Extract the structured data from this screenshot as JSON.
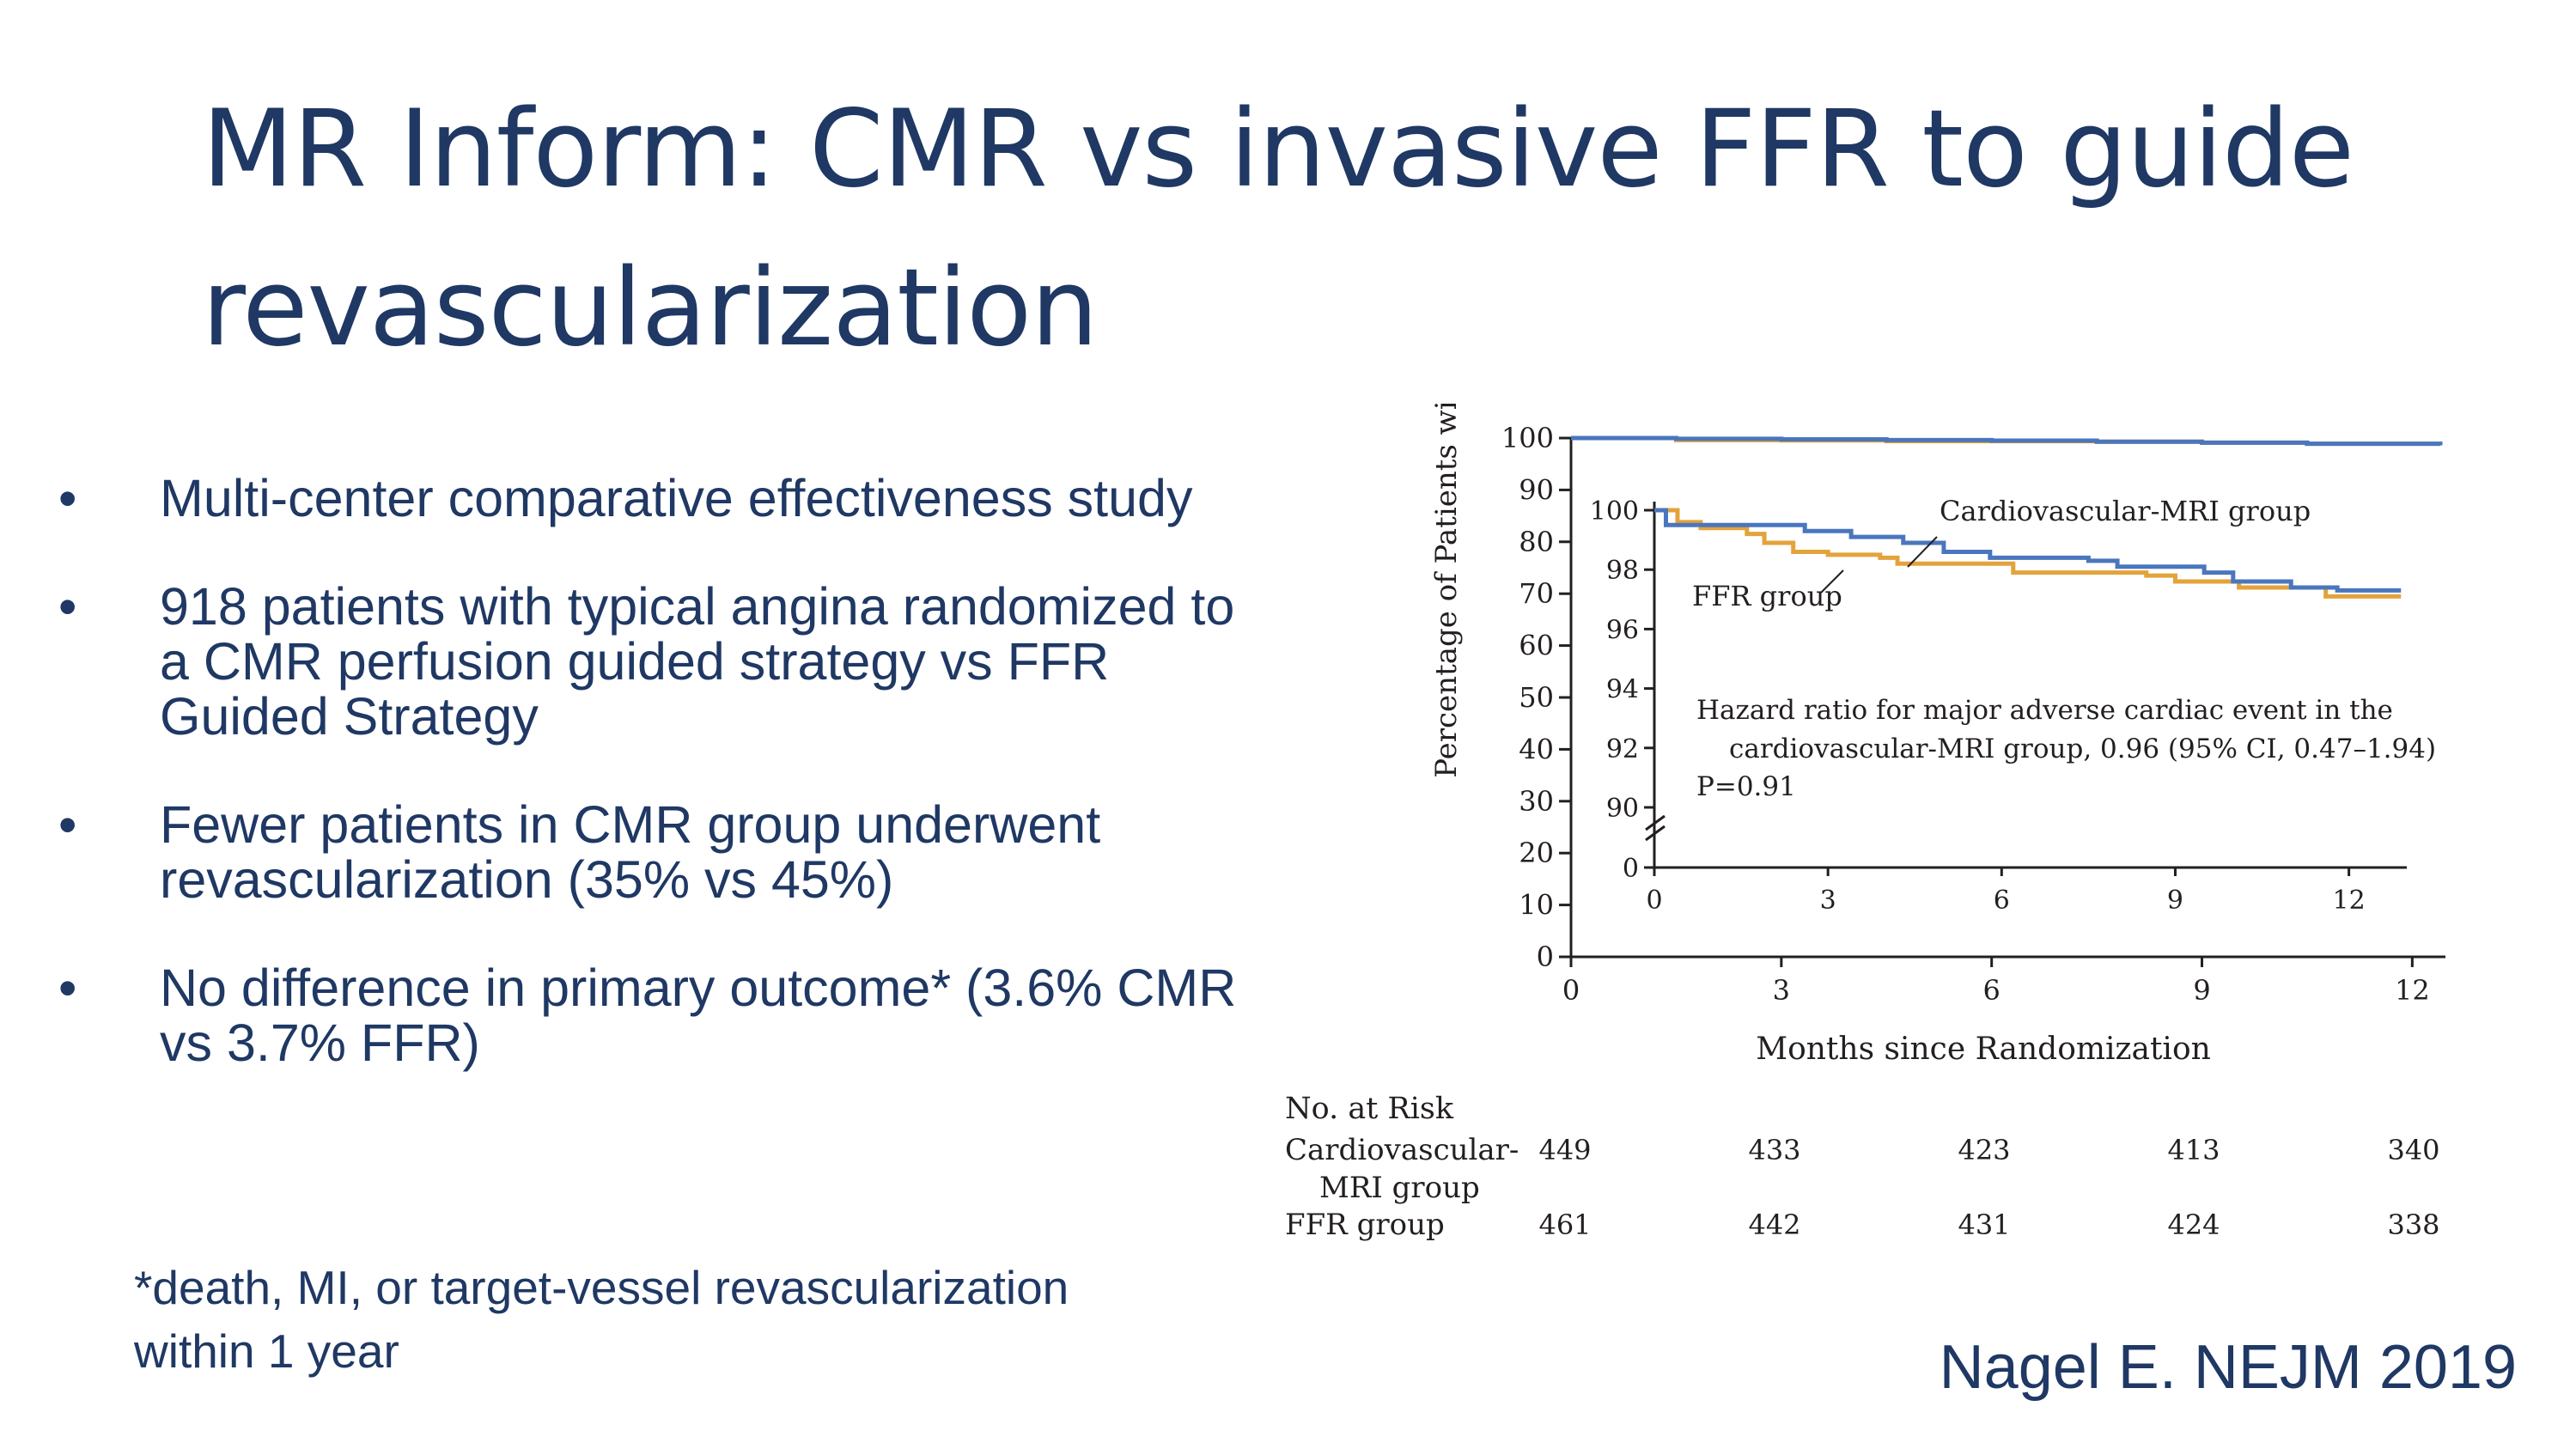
{
  "title": {
    "line1": "MR Inform: CMR vs invasive FFR to guide",
    "line2": "revascularization"
  },
  "bullets": [
    {
      "marker": "•",
      "text": "Multi-center comparative effectiveness study"
    },
    {
      "marker": "•",
      "text": "918 patients with typical angina randomized to a CMR perfusion guided strategy vs FFR Guided Strategy"
    },
    {
      "marker": "•",
      "text": "Fewer patients in CMR group underwent revascularization (35% vs 45%)"
    },
    {
      "marker": "•",
      "text": "No difference in primary outcome* (3.6% CMR vs 3.7% FFR)"
    }
  ],
  "footnote": {
    "line1": "*death, MI, or target-vessel revascularization",
    "line2": "within 1 year"
  },
  "citation": "Nagel E. NEJM 2019",
  "colors": {
    "text": "#1f3864",
    "cmr": "#4a76bd",
    "ffr": "#e3a33b",
    "axis": "#231f20"
  },
  "chart_data": {
    "type": "line",
    "xlabel": "Months since Randomization",
    "ylabel": "Percentage of Patients without Event",
    "xlim": [
      0,
      12.4
    ],
    "ylim": [
      0,
      100
    ],
    "xticks": [
      0,
      3,
      6,
      9,
      12
    ],
    "yticks": [
      0,
      10,
      20,
      30,
      40,
      50,
      60,
      70,
      80,
      90,
      100
    ],
    "series": [
      {
        "name": "Cardiovascular-MRI group",
        "points": [
          [
            0,
            100
          ],
          [
            1.5,
            99.85
          ],
          [
            3,
            99.75
          ],
          [
            4.5,
            99.6
          ],
          [
            6,
            99.5
          ],
          [
            7.5,
            99.3
          ],
          [
            9,
            99.1
          ],
          [
            10.5,
            98.9
          ],
          [
            12.4,
            98.6
          ]
        ]
      },
      {
        "name": "FFR group",
        "points": [
          [
            0,
            100
          ],
          [
            1.5,
            99.6
          ],
          [
            3,
            99.55
          ],
          [
            4.5,
            99.4
          ],
          [
            6,
            99.4
          ],
          [
            7.5,
            99.3
          ],
          [
            9,
            99.1
          ],
          [
            10.5,
            98.9
          ],
          [
            12.4,
            98.6
          ]
        ]
      }
    ],
    "inset": {
      "xlim": [
        0,
        13
      ],
      "ylim": [
        90,
        100
      ],
      "xticks": [
        0,
        3,
        6,
        9,
        12
      ],
      "yticks": [
        90,
        92,
        94,
        96,
        98,
        100
      ],
      "zero_label": "0",
      "series": [
        {
          "name": "Cardiovascular-MRI group",
          "label": "Cardiovascular-MRI group",
          "steps": [
            [
              0,
              100
            ],
            [
              0.2,
              99.5
            ],
            [
              2.6,
              99.3
            ],
            [
              3.4,
              99.1
            ],
            [
              4.3,
              98.9
            ],
            [
              5.0,
              98.6
            ],
            [
              5.8,
              98.4
            ],
            [
              7.5,
              98.3
            ],
            [
              8.0,
              98.1
            ],
            [
              9.5,
              97.9
            ],
            [
              10.0,
              97.6
            ],
            [
              11.0,
              97.4
            ],
            [
              11.8,
              97.3
            ],
            [
              12.9,
              97.3
            ]
          ]
        },
        {
          "name": "FFR group",
          "label": "FFR group",
          "steps": [
            [
              0,
              100
            ],
            [
              0.4,
              99.6
            ],
            [
              0.8,
              99.4
            ],
            [
              1.6,
              99.2
            ],
            [
              1.9,
              98.9
            ],
            [
              2.4,
              98.6
            ],
            [
              3.0,
              98.5
            ],
            [
              3.9,
              98.4
            ],
            [
              4.2,
              98.2
            ],
            [
              6.2,
              97.9
            ],
            [
              8.5,
              97.8
            ],
            [
              9.0,
              97.6
            ],
            [
              10.1,
              97.4
            ],
            [
              11.6,
              97.1
            ],
            [
              12.9,
              97.1
            ]
          ]
        }
      ],
      "annotation_line1": "Hazard ratio for major adverse cardiac event in the",
      "annotation_line2": "cardiovascular-MRI group, 0.96 (95% CI, 0.47–1.94)",
      "annotation_line3": "P=0.91"
    },
    "risk_table": {
      "header": "No. at Risk",
      "rows": [
        {
          "label_line1": "Cardiovascular-",
          "label_line2": "MRI group",
          "values": [
            449,
            433,
            423,
            413,
            340
          ]
        },
        {
          "label_line1": "FFR group",
          "label_line2": "",
          "values": [
            461,
            442,
            431,
            424,
            338
          ]
        }
      ]
    }
  }
}
